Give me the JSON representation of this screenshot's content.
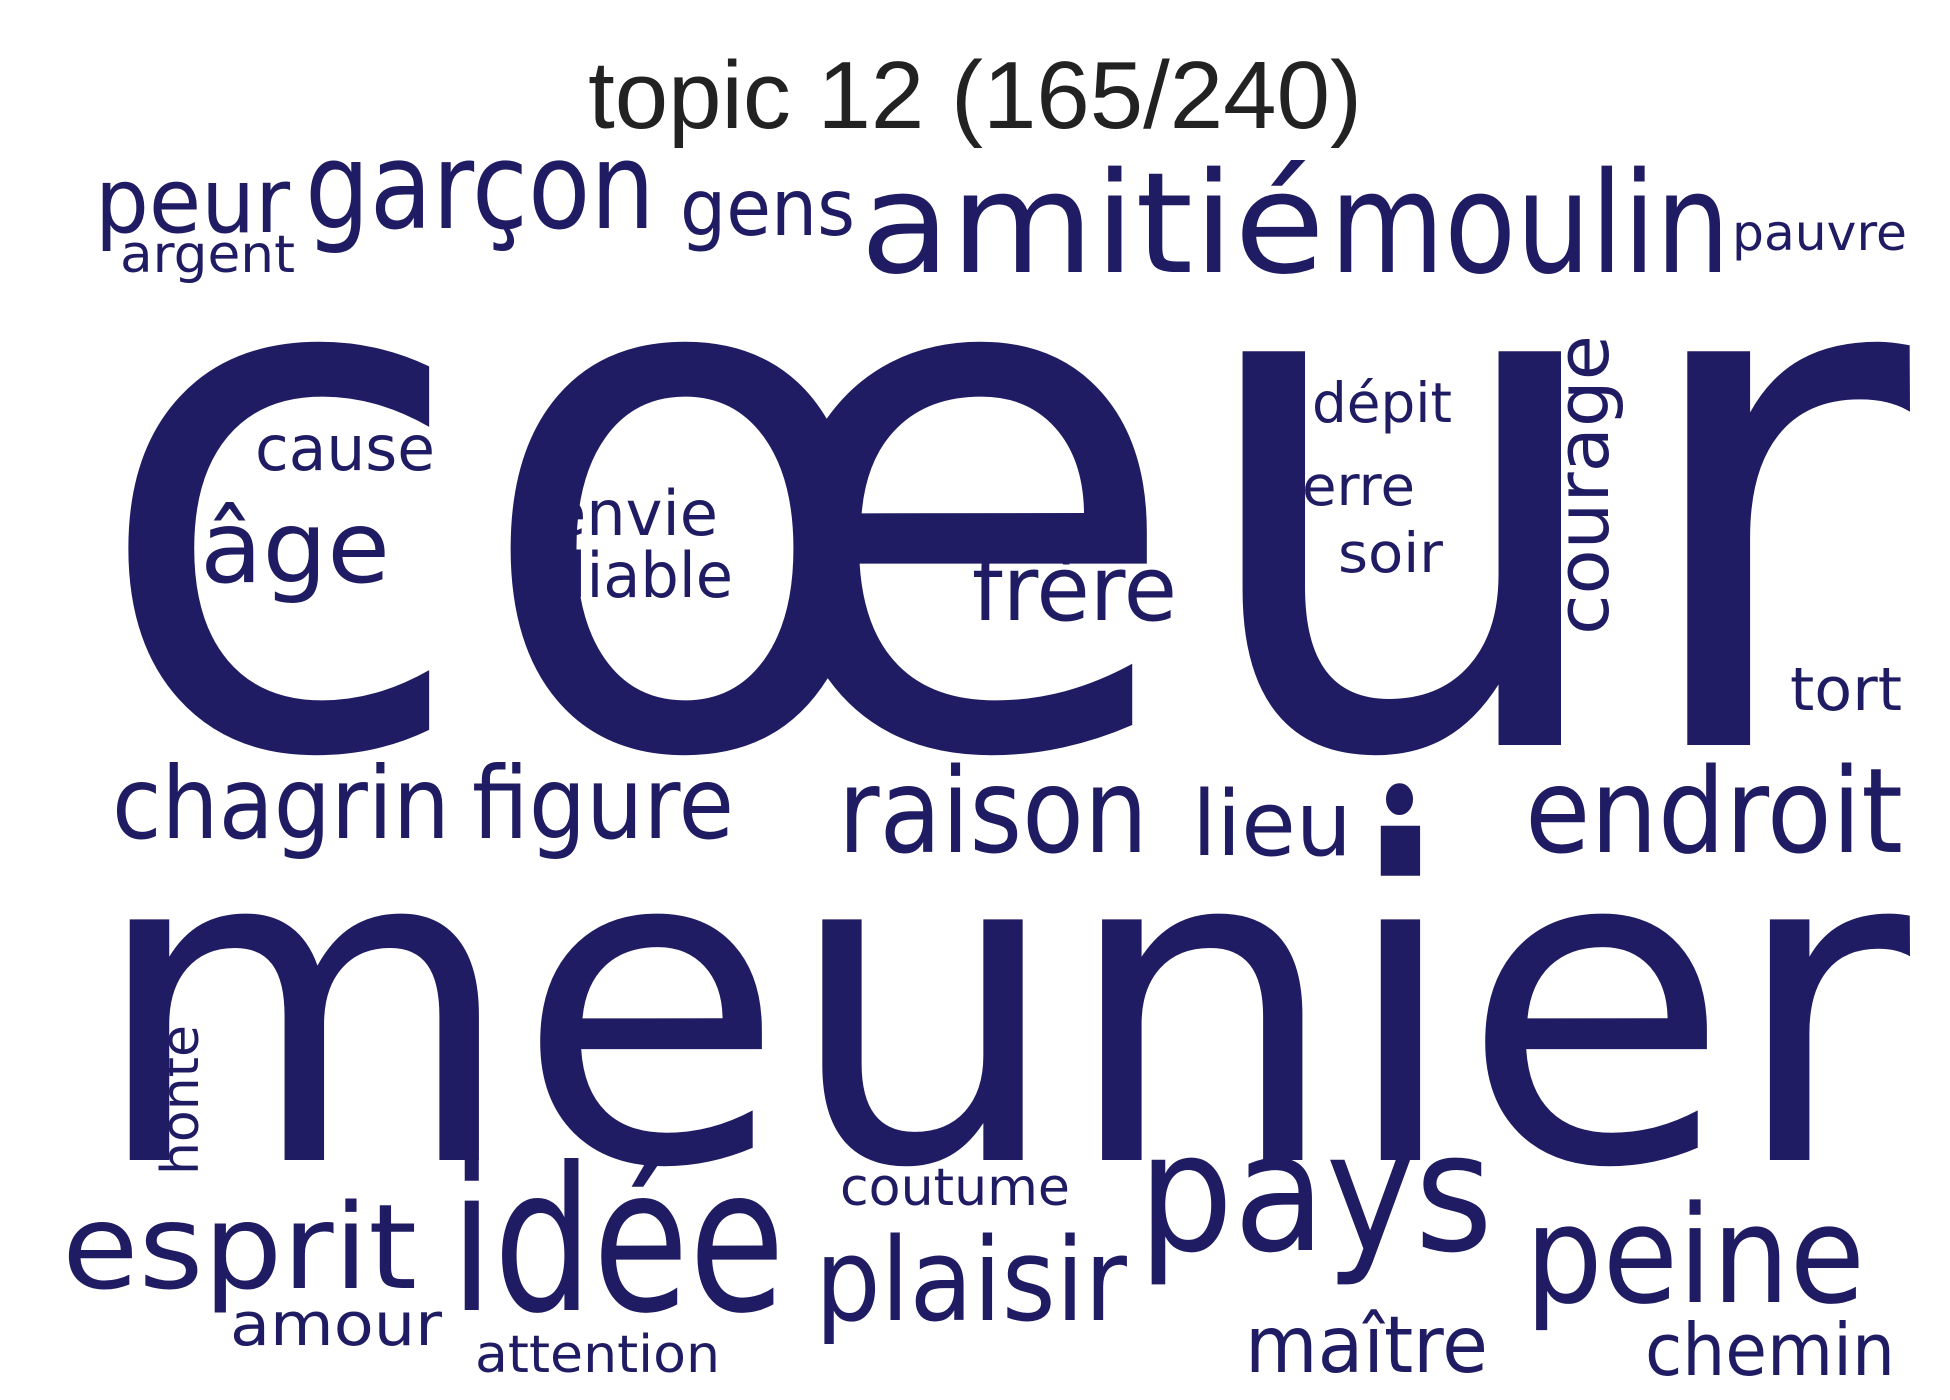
{
  "title": "topic 12 (165/240)",
  "word_color": "#201c63",
  "words": {
    "coeur": "cœur",
    "meunier": "meunier",
    "peur": "peur",
    "argent": "argent",
    "garcon": "garçon",
    "gens": "gens",
    "amitie": "amitié",
    "moulin": "moulin",
    "pauvre": "pauvre",
    "cause": "cause",
    "age": "âge",
    "envie": "envie",
    "diable": "diable",
    "frere": "frère",
    "depit": "dépit",
    "terre": "terre",
    "soir": "soir",
    "courage": "courage",
    "tort": "tort",
    "chagrin": "chagrin",
    "figure": "figure",
    "raison": "raison",
    "lieu": "lieu",
    "dot": "•",
    "endroit": "endroit",
    "honte": "honte",
    "esprit": "esprit",
    "amour": "amour",
    "idee": "idée",
    "attention": "attention",
    "coutume": "coutume",
    "plaisir": "plaisir",
    "pays": "pays",
    "maitre": "maître",
    "peine": "peine",
    "chemin": "chemin"
  }
}
